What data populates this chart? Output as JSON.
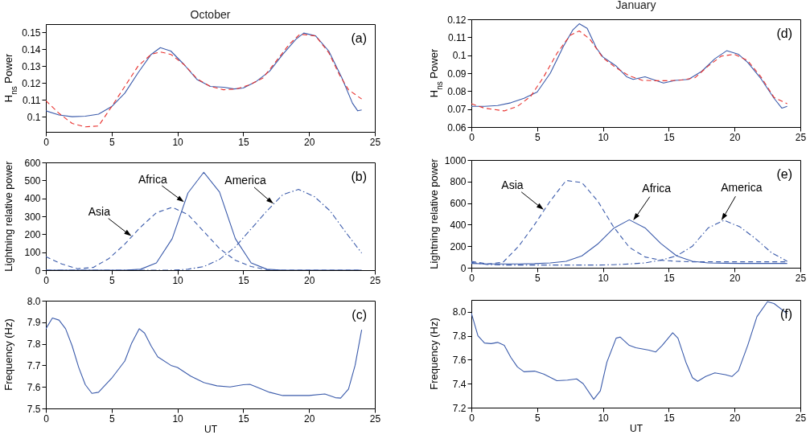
{
  "chart_data": [
    {
      "type": "line",
      "title": "October",
      "ylabel": "H$_{ns}$ Power",
      "xlim": [
        0,
        25
      ],
      "xticks": [
        0,
        5,
        10,
        15,
        20,
        25
      ],
      "ylim": [
        0.091,
        0.155
      ],
      "yticks": [
        0.1,
        0.11,
        0.12,
        0.13,
        0.14,
        0.15
      ],
      "annotations": [
        "(a)"
      ],
      "series": [
        {
          "color": "#3b5bab",
          "line_style": "solid",
          "x": [
            0,
            1,
            2,
            3,
            4,
            5,
            6,
            7,
            8,
            8.7,
            9.5,
            10.5,
            11.5,
            12.5,
            13.5,
            14.3,
            15,
            16,
            17,
            18,
            19,
            19.6,
            20.5,
            21.5,
            22.5,
            23.3,
            23.7,
            24
          ],
          "values": [
            0.1035,
            0.101,
            0.1,
            0.1003,
            0.1015,
            0.106,
            0.114,
            0.126,
            0.137,
            0.141,
            0.139,
            0.131,
            0.122,
            0.118,
            0.1175,
            0.1165,
            0.117,
            0.121,
            0.127,
            0.137,
            0.146,
            0.1497,
            0.148,
            0.139,
            0.123,
            0.108,
            0.1035,
            0.104
          ]
        },
        {
          "color": "#e8312e",
          "line_style": "dashed",
          "x": [
            0,
            1,
            2,
            3,
            4,
            5,
            6,
            7,
            8,
            8.7,
            9.5,
            10.5,
            11.5,
            12.5,
            13.5,
            14.5,
            15.5,
            16.5,
            17.5,
            18.5,
            19.3,
            20.5,
            21.5,
            22.3,
            23,
            24
          ],
          "values": [
            0.1095,
            0.102,
            0.096,
            0.094,
            0.0945,
            0.106,
            0.118,
            0.13,
            0.137,
            0.1385,
            0.137,
            0.131,
            0.1225,
            0.118,
            0.116,
            0.1165,
            0.119,
            0.123,
            0.133,
            0.143,
            0.149,
            0.148,
            0.138,
            0.125,
            0.116,
            0.1105
          ]
        }
      ]
    },
    {
      "type": "line",
      "title": "January",
      "ylabel": "H$_{ns}$ Power",
      "xlim": [
        0,
        25
      ],
      "xticks": [
        0,
        5,
        10,
        15,
        20,
        25
      ],
      "ylim": [
        0.06,
        0.12
      ],
      "yticks": [
        0.06,
        0.07,
        0.08,
        0.09,
        0.1,
        0.11,
        0.12
      ],
      "annotations": [
        "(d)"
      ],
      "series": [
        {
          "color": "#3b5bab",
          "line_style": "solid",
          "x": [
            0,
            1,
            2,
            3,
            4,
            5,
            6,
            7,
            7.7,
            8.2,
            8.8,
            9.5,
            10,
            11,
            11.8,
            12.3,
            13.2,
            14,
            14.6,
            15.5,
            16.5,
            17.5,
            18.5,
            19.4,
            20.3,
            21,
            22,
            23,
            23.6,
            24
          ],
          "values": [
            0.0715,
            0.0715,
            0.072,
            0.0735,
            0.076,
            0.0795,
            0.09,
            0.105,
            0.114,
            0.1175,
            0.115,
            0.104,
            0.099,
            0.094,
            0.088,
            0.0865,
            0.088,
            0.086,
            0.0845,
            0.086,
            0.0865,
            0.091,
            0.098,
            0.1025,
            0.1005,
            0.096,
            0.087,
            0.076,
            0.0705,
            0.0715
          ]
        },
        {
          "color": "#e8312e",
          "line_style": "dashed",
          "x": [
            0,
            1,
            2.5,
            3.5,
            4.5,
            5.5,
            6.5,
            7.5,
            8.2,
            9,
            10,
            11,
            12,
            13,
            14,
            15,
            16,
            17,
            18,
            19,
            20,
            21,
            22,
            23,
            24
          ],
          "values": [
            0.073,
            0.0705,
            0.069,
            0.0715,
            0.077,
            0.088,
            0.101,
            0.111,
            0.1135,
            0.109,
            0.0985,
            0.093,
            0.0885,
            0.086,
            0.0858,
            0.0858,
            0.0862,
            0.0875,
            0.094,
            0.0995,
            0.1005,
            0.097,
            0.088,
            0.0765,
            0.073
          ]
        }
      ]
    },
    {
      "type": "line",
      "ylabel": "Lightning relative power",
      "xlim": [
        0,
        25
      ],
      "xticks": [
        0,
        5,
        10,
        15,
        20,
        25
      ],
      "ylim": [
        0,
        600
      ],
      "yticks": [
        0,
        100,
        200,
        300,
        400,
        500,
        600
      ],
      "annotations": [
        "(b)",
        {
          "text": "Asia",
          "x": 6.5,
          "y": 190
        },
        {
          "text": "Africa",
          "x": 10.5,
          "y": 380
        },
        {
          "text": "America",
          "x": 17.3,
          "y": 370
        }
      ],
      "series": [
        {
          "color": "#3b5bab",
          "line_style": "dashed",
          "x": [
            0,
            1.2,
            2.4,
            3.6,
            4.8,
            6,
            7.2,
            8.4,
            9.6,
            10.8,
            12,
            13.2,
            14.4,
            15.6,
            16.8,
            18,
            19.2,
            20.4,
            21.6,
            22.8,
            24
          ],
          "values": [
            75,
            35,
            8,
            15,
            65,
            145,
            240,
            320,
            350,
            310,
            215,
            120,
            55,
            20,
            3,
            0,
            0,
            0,
            0,
            0,
            0
          ]
        },
        {
          "color": "#3b5bab",
          "line_style": "solid",
          "x": [
            0,
            1.2,
            2.4,
            3.6,
            4.8,
            6,
            7.2,
            8.4,
            9.6,
            10.8,
            12,
            13.2,
            14.4,
            15.6,
            16.8,
            18,
            19.2,
            20.4,
            21.6,
            22.8,
            24
          ],
          "values": [
            0,
            0,
            0,
            0,
            0,
            0,
            5,
            40,
            175,
            430,
            545,
            435,
            175,
            40,
            5,
            0,
            0,
            0,
            0,
            0,
            0
          ]
        },
        {
          "color": "#3b5bab",
          "line_style": "dashdot",
          "x": [
            0,
            1.2,
            2.4,
            3.6,
            4.8,
            6,
            7.2,
            8.4,
            9.6,
            10.8,
            12,
            13.2,
            14.4,
            15.6,
            16.8,
            18,
            19.2,
            20.4,
            21.6,
            22.8,
            24
          ],
          "values": [
            0,
            0,
            0,
            0,
            0,
            0,
            0,
            0,
            0,
            5,
            20,
            60,
            130,
            230,
            330,
            420,
            450,
            410,
            330,
            210,
            95
          ]
        }
      ]
    },
    {
      "type": "line",
      "ylabel": "Lightning relative power",
      "xlim": [
        0,
        25
      ],
      "xticks": [
        0,
        5,
        10,
        15,
        20,
        25
      ],
      "ylim": [
        0,
        1000
      ],
      "yticks": [
        0,
        200,
        400,
        600,
        800,
        1000
      ],
      "annotations": [
        "(e)",
        {
          "text": "Asia",
          "x": 5.5,
          "y": 540
        },
        {
          "text": "Africa",
          "x": 12.3,
          "y": 440
        },
        {
          "text": "America",
          "x": 19,
          "y": 440
        }
      ],
      "series": [
        {
          "color": "#3b5bab",
          "line_style": "dashed",
          "x": [
            0,
            1.2,
            2.4,
            3.6,
            4.8,
            6,
            7.2,
            8.4,
            9.6,
            10.8,
            12,
            13.2,
            14.4,
            15.6,
            16.8,
            18,
            19.2,
            20.4,
            21.6,
            22.8,
            24
          ],
          "values": [
            60,
            35,
            50,
            200,
            400,
            620,
            810,
            790,
            620,
            380,
            190,
            100,
            70,
            60,
            55,
            55,
            55,
            55,
            55,
            55,
            55
          ]
        },
        {
          "color": "#3b5bab",
          "line_style": "solid",
          "x": [
            0,
            1.2,
            2.4,
            3.6,
            4.8,
            6,
            7.2,
            8.4,
            9.6,
            10.8,
            12,
            13.2,
            14.4,
            15.6,
            16.8,
            18,
            19.2,
            20.4,
            21.6,
            22.8,
            24
          ],
          "values": [
            40,
            35,
            35,
            35,
            38,
            45,
            60,
            110,
            220,
            365,
            445,
            370,
            225,
            110,
            60,
            45,
            42,
            40,
            40,
            40,
            40
          ]
        },
        {
          "color": "#3b5bab",
          "line_style": "dashdot",
          "x": [
            0,
            1.2,
            2.4,
            3.6,
            4.8,
            6,
            7.2,
            8.4,
            9.6,
            10.8,
            12,
            13.2,
            14.4,
            15.6,
            16.8,
            18,
            19.2,
            20.4,
            21.6,
            22.8,
            24
          ],
          "values": [
            50,
            30,
            25,
            25,
            25,
            25,
            25,
            25,
            25,
            28,
            35,
            45,
            70,
            110,
            200,
            370,
            440,
            380,
            270,
            140,
            60
          ]
        }
      ]
    },
    {
      "type": "line",
      "ylabel": "Frequency (Hz)",
      "xlabel": "UT",
      "xlim": [
        0,
        25
      ],
      "xticks": [
        0,
        5,
        10,
        15,
        20,
        25
      ],
      "ylim": [
        7.5,
        8.0
      ],
      "yticks": [
        {
          "value": 7.5,
          "label": "7.5"
        },
        {
          "value": 7.6,
          "label": "7.6"
        },
        {
          "value": 7.7,
          "label": "7.7"
        },
        {
          "value": 7.8,
          "label": "7.8"
        },
        {
          "value": 7.9,
          "label": "7.9"
        },
        {
          "value": 8.0,
          "label": "8.0"
        }
      ],
      "annotations": [
        "(c)"
      ],
      "series": [
        {
          "color": "#3b5bab",
          "line_style": "solid",
          "x": [
            0,
            0.5,
            1,
            1.5,
            2,
            2.5,
            3,
            3.5,
            4,
            5,
            6,
            6.5,
            7.1,
            7.5,
            8,
            8.5,
            9.5,
            10,
            11,
            12,
            13,
            14,
            15,
            15.5,
            16,
            17,
            18,
            20,
            21.2,
            22,
            22.4,
            23,
            23.5,
            24
          ],
          "values": [
            7.87,
            7.92,
            7.91,
            7.87,
            7.79,
            7.69,
            7.61,
            7.57,
            7.575,
            7.64,
            7.72,
            7.8,
            7.87,
            7.85,
            7.79,
            7.74,
            7.7,
            7.69,
            7.65,
            7.62,
            7.605,
            7.6,
            7.61,
            7.612,
            7.6,
            7.575,
            7.56,
            7.56,
            7.567,
            7.55,
            7.548,
            7.59,
            7.7,
            7.865
          ]
        }
      ]
    },
    {
      "type": "line",
      "ylabel": "Frequency (Hz)",
      "xlabel": "UT",
      "xlim": [
        0,
        25
      ],
      "xticks": [
        0,
        5,
        10,
        15,
        20,
        25
      ],
      "ylim": [
        7.2,
        8.1
      ],
      "yticks": [
        {
          "value": 7.2,
          "label": "7.2"
        },
        {
          "value": 7.4,
          "label": "7.4"
        },
        {
          "value": 7.6,
          "label": "7.6"
        },
        {
          "value": 7.8,
          "label": "7.8"
        },
        {
          "value": 8.0,
          "label": "8.0"
        }
      ],
      "annotations": [
        "(f)"
      ],
      "series": [
        {
          "color": "#3b5bab",
          "line_style": "solid",
          "x": [
            0,
            0.5,
            1,
            1.5,
            2,
            2.5,
            3,
            3.5,
            4,
            4.8,
            5.5,
            6.5,
            7.3,
            8,
            8.5,
            9.3,
            9.8,
            10.3,
            11,
            11.3,
            12,
            12.5,
            13.5,
            14,
            14.5,
            15.3,
            15.7,
            16.3,
            16.8,
            17.2,
            17.8,
            18.5,
            19.3,
            19.8,
            20.3,
            21,
            21.7,
            22.5,
            23,
            24
          ],
          "values": [
            7.99,
            7.8,
            7.74,
            7.735,
            7.745,
            7.72,
            7.62,
            7.54,
            7.5,
            7.505,
            7.48,
            7.425,
            7.43,
            7.44,
            7.4,
            7.27,
            7.34,
            7.58,
            7.78,
            7.79,
            7.72,
            7.7,
            7.68,
            7.665,
            7.72,
            7.825,
            7.78,
            7.58,
            7.45,
            7.42,
            7.46,
            7.49,
            7.475,
            7.46,
            7.51,
            7.72,
            7.96,
            8.085,
            8.07,
            7.985
          ]
        }
      ]
    }
  ]
}
